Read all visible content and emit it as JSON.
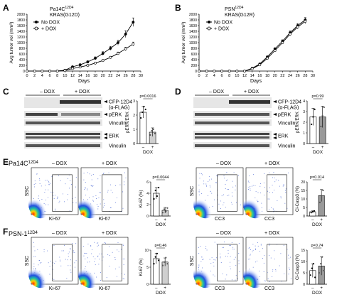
{
  "panels": {
    "A": {
      "letter": "A",
      "subtitle_line1": "Pa14C",
      "subtitle_sup": "12D4",
      "subtitle_line2": "KRAS(G12D)",
      "ylabel": "Avg tumor vol (mm³)",
      "xlabel": "Days",
      "legend": [
        "No DOX",
        "+ DOX"
      ]
    },
    "B": {
      "letter": "B",
      "subtitle_line1": "PSN",
      "subtitle_sup": "12D4",
      "subtitle_line2": "KRAS(G12R)",
      "ylabel": "Avg tumor vol (mm³)",
      "xlabel": "Days",
      "legend": [
        "No DOX",
        "+ DOX"
      ]
    },
    "C": {
      "letter": "C",
      "cond_minus": "– DOX",
      "cond_plus": "+ DOX",
      "bands": [
        "CFP-12D4",
        "(α-FLAG)",
        "pERK",
        "Vinculin",
        "ERK",
        "Vinculin"
      ],
      "bar_ylabel": "pERK/ERK",
      "pvalue": "p=0.0016",
      "xticks": [
        "–",
        "+"
      ],
      "xlabel": "DOX"
    },
    "D": {
      "letter": "D",
      "cond_minus": "– DOX",
      "cond_plus": "+ DOX",
      "bands": [
        "CFP-12D4",
        "(α-FLAG)",
        "pERK",
        "Vinculin",
        "ERK",
        "Vinculin"
      ],
      "bar_ylabel": "pERK/ERK",
      "pvalue": "p=0.99",
      "xticks": [
        "–",
        "+"
      ],
      "xlabel": "DOX"
    },
    "E": {
      "letter": "E",
      "cell_line": "Pa14C",
      "cell_sup": "12D4",
      "flow_minus": "– DOX",
      "flow_plus": "+ DOX",
      "ssc": "SSC",
      "ki67": "Ki-67",
      "cc3": "CC3",
      "ki67_ylabel": "Ki-67 (%)",
      "cc3_ylabel": "Cl-Casp3 (%)",
      "ki67_p": "p=0.0044",
      "cc3_p": "p=0.014",
      "xticks": [
        "–",
        "+"
      ],
      "xlabel": "DOX"
    },
    "F": {
      "letter": "F",
      "cell_line": "PSN-1",
      "cell_sup": "12D4",
      "flow_minus": "– DOX",
      "flow_plus": "+ DOX",
      "ssc": "SSC",
      "ki67": "Ki-67",
      "cc3": "CC3",
      "ki67_ylabel": "Ki-67 (%)",
      "cc3_ylabel": "Cl-Casp3 (%)",
      "ki67_p": "p=0.46",
      "cc3_p": "p=0.74",
      "xticks": [
        "–",
        "+"
      ],
      "xlabel": "DOX"
    }
  },
  "chart_data": [
    {
      "type": "line",
      "panel": "A",
      "xlabel": "Days",
      "ylabel": "Avg tumor vol (mm³)",
      "xlim": [
        0,
        30
      ],
      "ylim": [
        0,
        2000
      ],
      "xticks": [
        0,
        2,
        4,
        6,
        8,
        10,
        12,
        14,
        16,
        18,
        20,
        22,
        24,
        26,
        28,
        30
      ],
      "yticks": [
        0,
        200,
        400,
        600,
        800,
        1000,
        1200,
        1400,
        1600,
        1800,
        2000
      ],
      "series": [
        {
          "name": "No DOX",
          "x": [
            0,
            2,
            4,
            6,
            8,
            10,
            12,
            14,
            16,
            18,
            20,
            22,
            24,
            26,
            28
          ],
          "y": [
            0,
            0,
            0,
            0,
            0,
            30,
            150,
            220,
            320,
            450,
            620,
            800,
            1000,
            1300,
            1720
          ],
          "err": [
            0,
            0,
            0,
            0,
            0,
            10,
            20,
            30,
            40,
            50,
            60,
            70,
            90,
            120,
            150
          ]
        },
        {
          "name": "+ DOX",
          "x": [
            0,
            2,
            4,
            6,
            8,
            10,
            12,
            14,
            16,
            18,
            20,
            22,
            24,
            26,
            28
          ],
          "y": [
            0,
            0,
            0,
            0,
            0,
            20,
            90,
            140,
            200,
            280,
            370,
            480,
            620,
            780,
            950
          ],
          "err": [
            0,
            0,
            0,
            0,
            0,
            10,
            15,
            20,
            25,
            30,
            35,
            40,
            50,
            60,
            70
          ]
        }
      ]
    },
    {
      "type": "line",
      "panel": "B",
      "xlabel": "Days",
      "ylabel": "Avg tumor vol (mm³)",
      "xlim": [
        0,
        30
      ],
      "ylim": [
        0,
        2000
      ],
      "xticks": [
        0,
        2,
        4,
        6,
        8,
        10,
        12,
        14,
        16,
        18,
        20,
        22,
        24,
        26,
        28,
        30
      ],
      "yticks": [
        0,
        200,
        400,
        600,
        800,
        1000,
        1200,
        1400,
        1600,
        1800,
        2000
      ],
      "series": [
        {
          "name": "No DOX",
          "x": [
            0,
            2,
            4,
            6,
            8,
            10,
            12,
            14,
            16,
            18,
            20,
            22,
            24,
            26,
            28
          ],
          "y": [
            0,
            0,
            0,
            0,
            0,
            0,
            0,
            100,
            250,
            500,
            780,
            1050,
            1350,
            1600,
            1800
          ],
          "err": [
            0,
            0,
            0,
            0,
            0,
            0,
            0,
            10,
            20,
            30,
            40,
            50,
            60,
            70,
            80
          ]
        },
        {
          "name": "+ DOX",
          "x": [
            0,
            2,
            4,
            6,
            8,
            10,
            12,
            14,
            16,
            18,
            20,
            22,
            24,
            26,
            28
          ],
          "y": [
            0,
            0,
            0,
            0,
            0,
            0,
            0,
            80,
            220,
            450,
            720,
            1000,
            1300,
            1550,
            1750
          ],
          "err": [
            0,
            0,
            0,
            0,
            0,
            0,
            0,
            10,
            20,
            30,
            40,
            50,
            60,
            70,
            80
          ]
        }
      ]
    },
    {
      "type": "bar",
      "panel": "C",
      "categories": [
        "–",
        "+"
      ],
      "values": [
        2.2,
        0.8
      ],
      "err": [
        0.4,
        0.3
      ],
      "points": [
        [
          1.8,
          2.2,
          2.6,
          2.4
        ],
        [
          0.6,
          0.9,
          1.0,
          0.7
        ]
      ],
      "ylim": [
        0,
        3
      ],
      "yticks": [
        0,
        1,
        2,
        3
      ],
      "ylabel": "pERK/ERK",
      "xlabel": "DOX"
    },
    {
      "type": "bar",
      "panel": "D",
      "categories": [
        "–",
        "+"
      ],
      "values": [
        2.5,
        2.5
      ],
      "err": [
        0.8,
        1.0
      ],
      "points": [
        [
          1.8,
          2.5,
          3.2
        ],
        [
          1.6,
          2.6,
          3.4
        ]
      ],
      "ylim": [
        0,
        4
      ],
      "yticks": [
        0,
        1,
        2,
        3,
        4
      ],
      "ylabel": "pERK/ERK",
      "xlabel": "DOX"
    },
    {
      "type": "bar",
      "panel": "E-Ki67",
      "categories": [
        "–",
        "+"
      ],
      "values": [
        4,
        1
      ],
      "err": [
        1.0,
        0.5
      ],
      "points": [
        [
          3,
          4.5,
          3.5,
          5
        ],
        [
          0.6,
          1.2,
          0.8,
          1.4
        ]
      ],
      "ylim": [
        0,
        6
      ],
      "yticks": [
        0,
        2,
        4,
        6
      ],
      "ylabel": "Ki-67 (%)",
      "xlabel": "DOX"
    },
    {
      "type": "bar",
      "panel": "E-CC3",
      "categories": [
        "–",
        "+"
      ],
      "values": [
        2.5,
        12
      ],
      "err": [
        0.5,
        3.5
      ],
      "points": [
        [
          2,
          2.5,
          3
        ],
        [
          8,
          12,
          15
        ]
      ],
      "ylim": [
        0,
        20
      ],
      "yticks": [
        0,
        5,
        10,
        15,
        20
      ],
      "ylabel": "Cl-Casp3 (%)",
      "xlabel": "DOX"
    },
    {
      "type": "bar",
      "panel": "F-Ki67",
      "categories": [
        "–",
        "+"
      ],
      "values": [
        7.5,
        6.5
      ],
      "err": [
        1.5,
        1.2
      ],
      "points": [
        [
          6,
          8,
          9,
          7
        ],
        [
          5.5,
          6.5,
          7.8,
          6
        ]
      ],
      "ylim": [
        0,
        10
      ],
      "yticks": [
        0,
        5,
        10
      ],
      "ylabel": "Ki-67 (%)",
      "xlabel": "DOX"
    },
    {
      "type": "bar",
      "panel": "F-CC3",
      "categories": [
        "–",
        "+"
      ],
      "values": [
        6,
        8
      ],
      "err": [
        3,
        4
      ],
      "points": [
        [
          4,
          7,
          9,
          3
        ],
        [
          5,
          9,
          12,
          6
        ]
      ],
      "ylim": [
        0,
        15
      ],
      "yticks": [
        0,
        5,
        10,
        15
      ],
      "ylabel": "Cl-Casp3 (%)",
      "xlabel": "DOX"
    }
  ]
}
